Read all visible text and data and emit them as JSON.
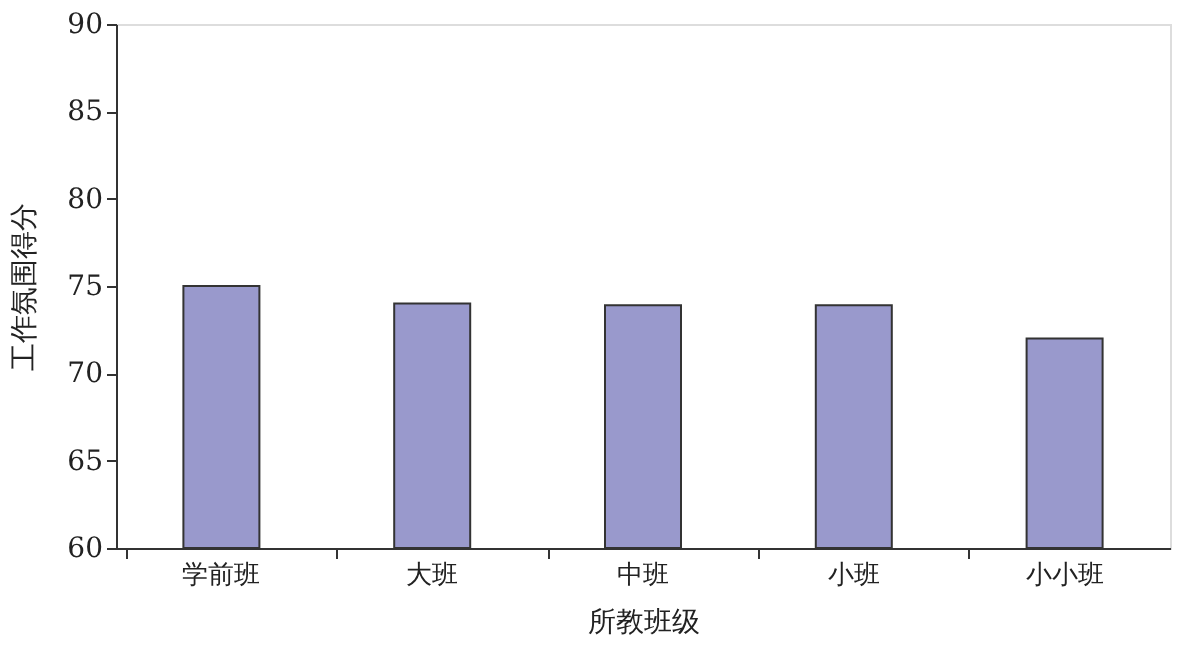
{
  "chart_data": {
    "type": "bar",
    "xlabel": "所教班级",
    "ylabel": "工作氛围得分",
    "categories": [
      "学前班",
      "大班",
      "中班",
      "小班",
      "小小班"
    ],
    "values": [
      75,
      74,
      73.9,
      73.9,
      72
    ],
    "color": "#9999cc",
    "ylim": [
      60,
      90
    ],
    "yticks": [
      60,
      65,
      70,
      75,
      80,
      85,
      90
    ],
    "grid": false
  }
}
